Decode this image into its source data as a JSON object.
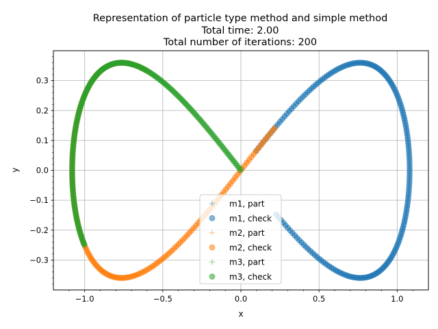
{
  "chart_data": {
    "type": "scatter",
    "title_lines": [
      "Representation of particle type method and simple method",
      "Total time: 2.00",
      "Total number of iterations: 200"
    ],
    "xlabel": "x",
    "ylabel": "y",
    "xlim": [
      -1.2,
      1.2
    ],
    "ylim": [
      -0.4,
      0.4
    ],
    "xticks": [
      -1.0,
      -0.5,
      0.0,
      0.5,
      1.0
    ],
    "xtick_labels": [
      "−1.0",
      "−0.5",
      "0.0",
      "0.5",
      "1.0"
    ],
    "yticks": [
      -0.3,
      -0.2,
      -0.1,
      0.0,
      0.1,
      0.2,
      0.3
    ],
    "ytick_labels": [
      "−0.3",
      "−0.2",
      "−0.1",
      "0.0",
      "0.1",
      "0.2",
      "0.3"
    ],
    "grid": true,
    "legend_position": "lower center",
    "curve": "figure-eight, x = 1.0798·cos(θ), y = 0.7197·sin(θ)·cos(θ)",
    "series": [
      {
        "name": "m1, part",
        "marker": "plus",
        "color": "#1f77b4",
        "theta_start": 1.48,
        "theta_end": -1.36,
        "points": 200
      },
      {
        "name": "m1, check",
        "marker": "circle",
        "color": "#1f77b4",
        "theta_start": 1.48,
        "theta_end": -1.36,
        "points": 200
      },
      {
        "name": "m2, part",
        "marker": "plus",
        "color": "#ff7f0e",
        "theta_start": 4.12,
        "theta_end": 1.37,
        "points": 200
      },
      {
        "name": "m2, check",
        "marker": "circle",
        "color": "#ff7f0e",
        "theta_start": 4.12,
        "theta_end": 1.37,
        "points": 200
      },
      {
        "name": "m3, part",
        "marker": "plus",
        "color": "#2ca02c",
        "theta_start": 4.71,
        "theta_end": 2.76,
        "points": 200
      },
      {
        "name": "m3, check",
        "marker": "circle",
        "color": "#2ca02c",
        "theta_start": 4.71,
        "theta_end": 2.76,
        "points": 200
      }
    ]
  }
}
